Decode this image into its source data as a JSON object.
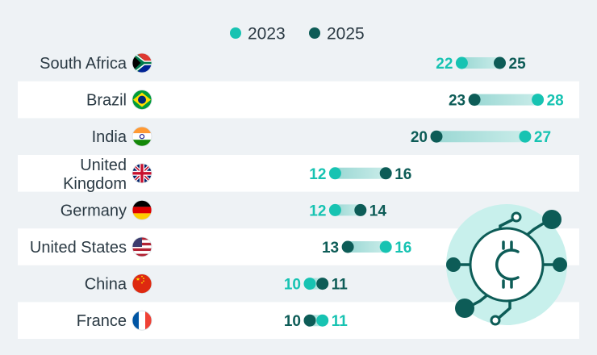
{
  "colors": {
    "y2023": "#17c3b2",
    "y2025": "#0d5c57",
    "row_band": "#ffffff",
    "background": "#eef2f5",
    "label_text": "#2b3a44",
    "connector": "#a9dedb"
  },
  "legend": {
    "items": [
      {
        "label": "2023",
        "color": "#17c3b2"
      },
      {
        "label": "2025",
        "color": "#0d5c57"
      }
    ]
  },
  "decoration": {
    "icon": "crypto-coin-circuit-icon"
  },
  "chart_data": {
    "type": "dumbbell",
    "categories": [
      "South Africa",
      "Brazil",
      "India",
      "United Kingdom",
      "Germany",
      "United States",
      "China",
      "France"
    ],
    "series": [
      {
        "name": "2023",
        "values": [
          22,
          28,
          27,
          12,
          12,
          16,
          10,
          11
        ]
      },
      {
        "name": "2025",
        "values": [
          25,
          23,
          20,
          16,
          14,
          13,
          11,
          10
        ]
      }
    ],
    "flags": [
      "flag-za-icon",
      "flag-br-icon",
      "flag-in-icon",
      "flag-gb-icon",
      "flag-de-icon",
      "flag-us-icon",
      "flag-cn-icon",
      "flag-fr-icon"
    ],
    "grid": false,
    "legend_position": "top-center"
  }
}
